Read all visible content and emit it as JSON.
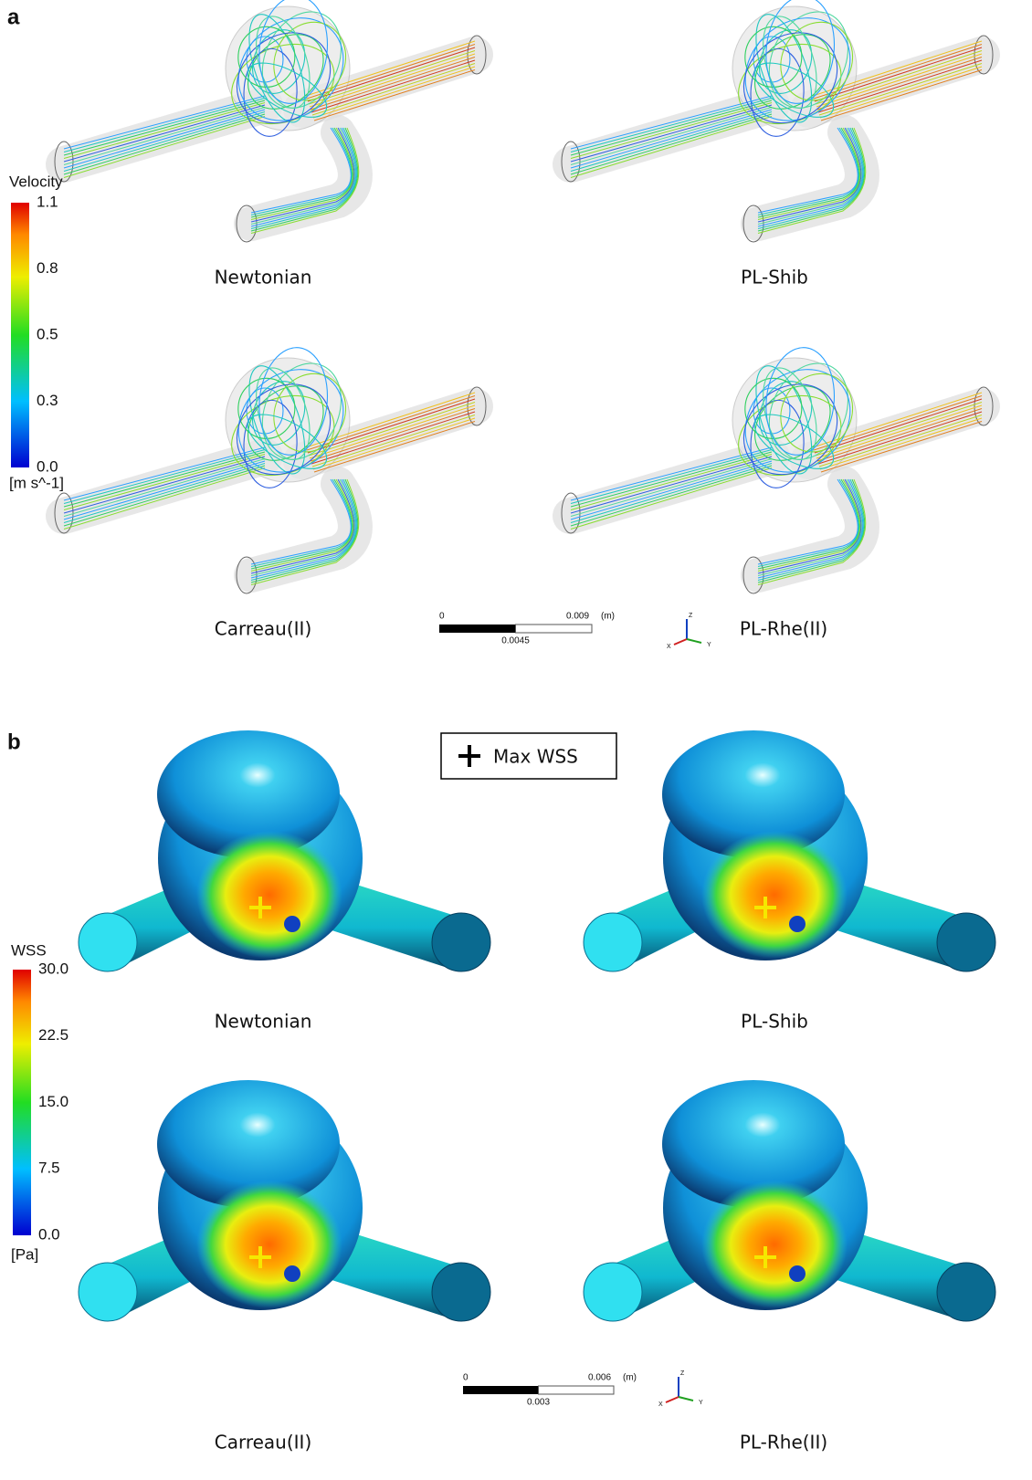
{
  "panels": [
    {
      "label": "a",
      "colorbar": {
        "title": "Velocity",
        "ticks": [
          "1.1",
          "0.8",
          "0.5",
          "0.3",
          "0.0"
        ],
        "unit": "[m s^-1]"
      },
      "models": [
        "Newtonian",
        "PL-Shib",
        "Carreau(II)",
        "PL-Rhe(II)"
      ],
      "scale_bar": {
        "start": "0",
        "mid": "0.0045",
        "end": "0.009",
        "unit": "(m)"
      },
      "axes": [
        "Z",
        "X",
        "Y"
      ]
    },
    {
      "label": "b",
      "legend": "Max WSS",
      "colorbar": {
        "title": "WSS",
        "ticks": [
          "30.0",
          "22.5",
          "15.0",
          "7.5",
          "0.0"
        ],
        "unit": "[Pa]"
      },
      "models": [
        "Newtonian",
        "PL-Shib",
        "Carreau(II)",
        "PL-Rhe(II)"
      ],
      "scale_bar": {
        "start": "0",
        "mid": "0.003",
        "end": "0.006",
        "unit": "(m)"
      },
      "axes": [
        "Z",
        "X",
        "Y"
      ]
    }
  ]
}
